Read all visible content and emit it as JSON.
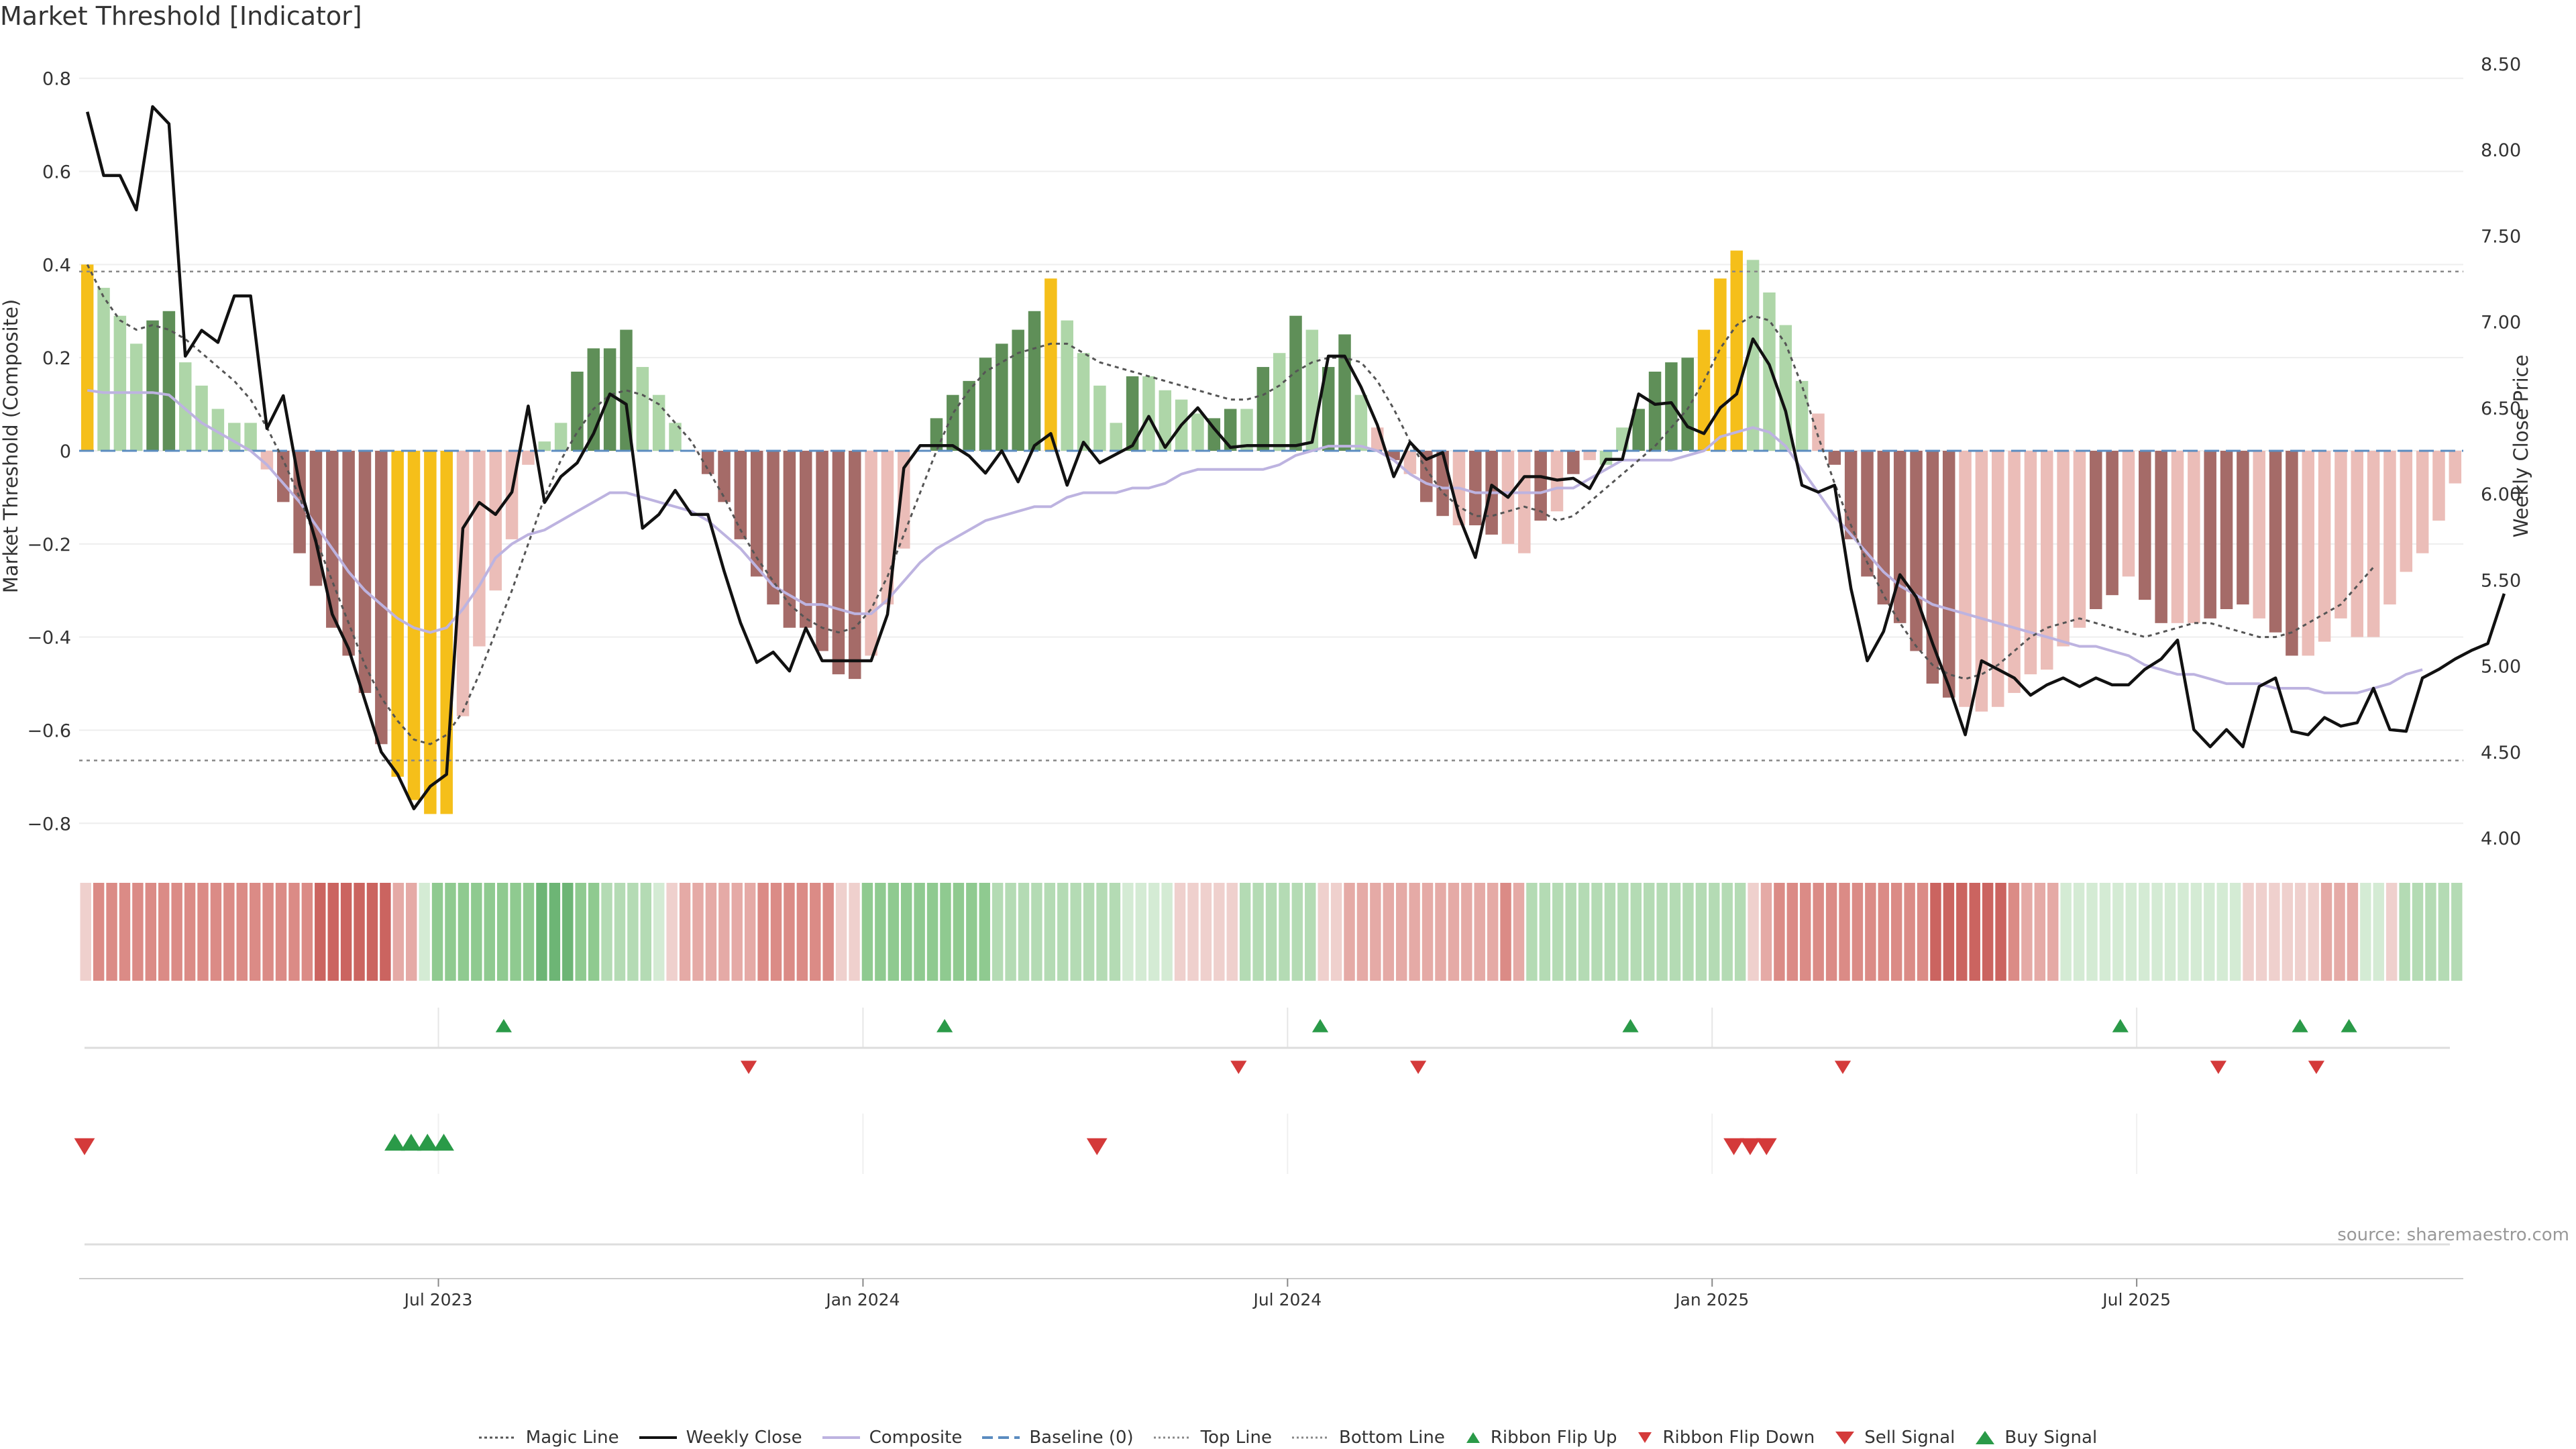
{
  "chart_data": {
    "type": "bar",
    "title": "Market Threshold [Indicator]",
    "left_axis_label": "Market Threshold (Composite)",
    "right_axis_label": "Weekly Close Price",
    "left_ylim": [
      -0.85,
      0.85
    ],
    "right_ylim": [
      3.95,
      8.55
    ],
    "left_ticks": [
      -0.8,
      -0.6,
      -0.4,
      -0.2,
      0,
      0.2,
      0.4,
      0.6,
      0.8
    ],
    "left_tick_labels": [
      "−0.8",
      "−0.6",
      "−0.4",
      "−0.2",
      "0",
      "0.2",
      "0.4",
      "0.6",
      "0.8"
    ],
    "right_ticks": [
      4.0,
      4.5,
      5.0,
      5.5,
      6.0,
      6.5,
      7.0,
      7.5,
      8.0,
      8.5
    ],
    "right_tick_labels": [
      "4.00",
      "4.50",
      "5.00",
      "5.50",
      "6.00",
      "6.50",
      "7.00",
      "7.50",
      "8.00",
      "8.50"
    ],
    "x_ticks": [
      {
        "label": "Jul 2023",
        "week": 22
      },
      {
        "label": "Jan 2024",
        "week": 48
      },
      {
        "label": "Jul 2024",
        "week": 74
      },
      {
        "label": "Jan 2025",
        "week": 100
      },
      {
        "label": "Jul 2025",
        "week": 126
      }
    ],
    "top_line": 0.385,
    "bottom_line": -0.665,
    "baseline": 0,
    "composite": [
      0.4,
      0.35,
      0.29,
      0.23,
      0.28,
      0.3,
      0.19,
      0.14,
      0.09,
      0.06,
      0.06,
      -0.04,
      -0.11,
      -0.22,
      -0.29,
      -0.38,
      -0.44,
      -0.52,
      -0.63,
      -0.7,
      -0.75,
      -0.78,
      -0.78,
      -0.57,
      -0.42,
      -0.3,
      -0.19,
      -0.03,
      0.02,
      0.06,
      0.17,
      0.22,
      0.22,
      0.26,
      0.18,
      0.12,
      0.06,
      0.0,
      -0.05,
      -0.11,
      -0.19,
      -0.27,
      -0.33,
      -0.38,
      -0.38,
      -0.43,
      -0.48,
      -0.49,
      -0.44,
      -0.33,
      -0.21,
      0.0,
      0.07,
      0.12,
      0.15,
      0.2,
      0.23,
      0.26,
      0.3,
      0.37,
      0.28,
      0.21,
      0.14,
      0.06,
      0.16,
      0.16,
      0.13,
      0.11,
      0.08,
      0.07,
      0.09,
      0.09,
      0.18,
      0.21,
      0.29,
      0.26,
      0.18,
      0.25,
      0.12,
      0.05,
      -0.02,
      -0.05,
      -0.11,
      -0.14,
      -0.16,
      -0.16,
      -0.18,
      -0.2,
      -0.22,
      -0.15,
      -0.13,
      -0.05,
      -0.02,
      -0.03,
      0.05,
      0.09,
      0.17,
      0.19,
      0.2,
      0.26,
      0.37,
      0.43,
      0.41,
      0.34,
      0.27,
      0.15,
      0.08,
      -0.03,
      -0.19,
      -0.27,
      -0.33,
      -0.37,
      -0.43,
      -0.5,
      -0.53,
      -0.55,
      -0.56,
      -0.55,
      -0.52,
      -0.48,
      -0.47,
      -0.42,
      -0.38,
      -0.34,
      -0.31,
      -0.27,
      -0.32,
      -0.37,
      -0.37,
      -0.37,
      -0.36,
      -0.34,
      -0.33,
      -0.36,
      -0.39,
      -0.44,
      -0.44,
      -0.41,
      -0.36,
      -0.4,
      -0.4,
      -0.33,
      -0.26,
      -0.22,
      -0.15,
      -0.07
    ],
    "bar_colors": [
      "Y",
      "L",
      "L",
      "L",
      "D",
      "D",
      "L",
      "L",
      "L",
      "L",
      "L",
      "P",
      "R",
      "R",
      "R",
      "R",
      "R",
      "R",
      "R",
      "Y",
      "Y",
      "Y",
      "Y",
      "P",
      "P",
      "P",
      "P",
      "P",
      "L",
      "L",
      "D",
      "D",
      "D",
      "D",
      "L",
      "L",
      "L",
      "P",
      "R",
      "R",
      "R",
      "R",
      "R",
      "R",
      "R",
      "R",
      "R",
      "R",
      "P",
      "P",
      "P",
      "L",
      "D",
      "D",
      "D",
      "D",
      "D",
      "D",
      "D",
      "Y",
      "L",
      "L",
      "L",
      "L",
      "D",
      "L",
      "L",
      "L",
      "L",
      "D",
      "D",
      "L",
      "D",
      "L",
      "D",
      "L",
      "D",
      "D",
      "L",
      "P",
      "R",
      "P",
      "R",
      "R",
      "P",
      "R",
      "R",
      "P",
      "P",
      "R",
      "P",
      "R",
      "P",
      "L",
      "L",
      "D",
      "D",
      "D",
      "D",
      "Y",
      "Y",
      "Y",
      "L",
      "L",
      "L",
      "L",
      "P",
      "R",
      "R",
      "R",
      "R",
      "R",
      "R",
      "R",
      "R",
      "P",
      "P",
      "P",
      "P",
      "P",
      "P",
      "P",
      "P",
      "R",
      "R",
      "P",
      "R",
      "R",
      "P",
      "P",
      "R",
      "R",
      "R",
      "P",
      "R",
      "R",
      "P",
      "P",
      "P",
      "P"
    ],
    "magic_line": [
      0.4,
      0.33,
      0.28,
      0.26,
      0.27,
      0.26,
      0.24,
      0.21,
      0.18,
      0.15,
      0.11,
      0.05,
      -0.02,
      -0.1,
      -0.19,
      -0.28,
      -0.37,
      -0.46,
      -0.53,
      -0.58,
      -0.62,
      -0.63,
      -0.61,
      -0.56,
      -0.48,
      -0.39,
      -0.3,
      -0.2,
      -0.1,
      -0.02,
      0.04,
      0.09,
      0.12,
      0.13,
      0.12,
      0.1,
      0.06,
      0.02,
      -0.04,
      -0.1,
      -0.17,
      -0.23,
      -0.28,
      -0.33,
      -0.36,
      -0.38,
      -0.39,
      -0.38,
      -0.34,
      -0.27,
      -0.18,
      -0.09,
      0.0,
      0.08,
      0.13,
      0.17,
      0.19,
      0.21,
      0.22,
      0.23,
      0.23,
      0.21,
      0.19,
      0.18,
      0.17,
      0.16,
      0.15,
      0.14,
      0.13,
      0.12,
      0.11,
      0.11,
      0.12,
      0.14,
      0.17,
      0.19,
      0.2,
      0.2,
      0.19,
      0.15,
      0.09,
      0.02,
      -0.04,
      -0.09,
      -0.12,
      -0.14,
      -0.14,
      -0.13,
      -0.12,
      -0.13,
      -0.15,
      -0.14,
      -0.11,
      -0.08,
      -0.05,
      -0.02,
      0.01,
      0.05,
      0.09,
      0.15,
      0.22,
      0.27,
      0.29,
      0.28,
      0.23,
      0.14,
      0.03,
      -0.07,
      -0.16,
      -0.24,
      -0.31,
      -0.37,
      -0.42,
      -0.46,
      -0.48,
      -0.49,
      -0.48,
      -0.46,
      -0.43,
      -0.4,
      -0.38,
      -0.37,
      -0.36,
      -0.37,
      -0.38,
      -0.39,
      -0.4,
      -0.39,
      -0.38,
      -0.37,
      -0.37,
      -0.38,
      -0.39,
      -0.4,
      -0.4,
      -0.39,
      -0.37,
      -0.35,
      -0.33,
      -0.29,
      -0.25
    ],
    "composite_line": [
      0.13,
      0.125,
      0.125,
      0.125,
      0.125,
      0.12,
      0.09,
      0.06,
      0.04,
      0.02,
      0.0,
      -0.03,
      -0.07,
      -0.11,
      -0.16,
      -0.21,
      -0.26,
      -0.3,
      -0.33,
      -0.36,
      -0.38,
      -0.39,
      -0.38,
      -0.34,
      -0.29,
      -0.23,
      -0.2,
      -0.18,
      -0.17,
      -0.15,
      -0.13,
      -0.11,
      -0.09,
      -0.09,
      -0.1,
      -0.11,
      -0.12,
      -0.13,
      -0.15,
      -0.18,
      -0.21,
      -0.25,
      -0.29,
      -0.31,
      -0.33,
      -0.33,
      -0.34,
      -0.35,
      -0.35,
      -0.32,
      -0.28,
      -0.24,
      -0.21,
      -0.19,
      -0.17,
      -0.15,
      -0.14,
      -0.13,
      -0.12,
      -0.12,
      -0.1,
      -0.09,
      -0.09,
      -0.09,
      -0.08,
      -0.08,
      -0.07,
      -0.05,
      -0.04,
      -0.04,
      -0.04,
      -0.04,
      -0.04,
      -0.03,
      -0.01,
      0.0,
      0.01,
      0.01,
      0.01,
      0.0,
      -0.02,
      -0.05,
      -0.07,
      -0.08,
      -0.08,
      -0.09,
      -0.09,
      -0.09,
      -0.09,
      -0.09,
      -0.08,
      -0.08,
      -0.06,
      -0.04,
      -0.02,
      -0.02,
      -0.02,
      -0.02,
      -0.01,
      0.0,
      0.03,
      0.04,
      0.05,
      0.04,
      0.01,
      -0.04,
      -0.09,
      -0.14,
      -0.18,
      -0.22,
      -0.26,
      -0.29,
      -0.31,
      -0.33,
      -0.34,
      -0.35,
      -0.36,
      -0.37,
      -0.38,
      -0.39,
      -0.4,
      -0.41,
      -0.42,
      -0.42,
      -0.43,
      -0.44,
      -0.46,
      -0.47,
      -0.48,
      -0.48,
      -0.49,
      -0.5,
      -0.5,
      -0.5,
      -0.51,
      -0.51,
      -0.51,
      -0.52,
      -0.52,
      -0.52,
      -0.51,
      -0.5,
      -0.48,
      -0.47
    ],
    "weekly_close": [
      8.22,
      7.85,
      7.85,
      7.65,
      8.25,
      8.15,
      6.8,
      6.95,
      6.88,
      7.15,
      7.15,
      6.38,
      6.57,
      6.05,
      5.72,
      5.3,
      5.1,
      4.8,
      4.5,
      4.37,
      4.17,
      4.3,
      4.37,
      5.8,
      5.95,
      5.88,
      6.01,
      6.51,
      5.95,
      6.1,
      6.18,
      6.35,
      6.58,
      6.52,
      5.8,
      5.88,
      6.02,
      5.88,
      5.88,
      5.55,
      5.25,
      5.02,
      5.08,
      4.97,
      5.22,
      5.03,
      5.03,
      5.03,
      5.03,
      5.3,
      6.15,
      6.28,
      6.28,
      6.28,
      6.22,
      6.12,
      6.25,
      6.07,
      6.28,
      6.35,
      6.05,
      6.3,
      6.18,
      6.23,
      6.28,
      6.45,
      6.27,
      6.4,
      6.5,
      6.38,
      6.27,
      6.28,
      6.28,
      6.28,
      6.28,
      6.3,
      6.8,
      6.8,
      6.62,
      6.4,
      6.1,
      6.3,
      6.2,
      6.24,
      5.87,
      5.63,
      6.05,
      5.98,
      6.1,
      6.1,
      6.08,
      6.09,
      6.03,
      6.2,
      6.2,
      6.58,
      6.52,
      6.53,
      6.39,
      6.35,
      6.5,
      6.58,
      6.9,
      6.75,
      6.48,
      6.05,
      6.01,
      6.05,
      5.45,
      5.03,
      5.2,
      5.53,
      5.4,
      5.13,
      4.88,
      4.6,
      5.03,
      4.98,
      4.93,
      4.83,
      4.89,
      4.93,
      4.88,
      4.93,
      4.89,
      4.89,
      4.98,
      5.04,
      5.15,
      4.63,
      4.53,
      4.63,
      4.53,
      4.88,
      4.93,
      4.62,
      4.6,
      4.7,
      4.65,
      4.67,
      4.87,
      4.63,
      4.62,
      4.93,
      4.98,
      5.04,
      5.09,
      5.13,
      5.42
    ],
    "ribbon_levels": [
      -1,
      -3,
      -3,
      -3,
      -3,
      -3,
      -3,
      -3,
      -3,
      -3,
      -3,
      -3,
      -3,
      -3,
      -3,
      -3,
      -3,
      -3,
      -4,
      -4,
      -4,
      -4,
      -4,
      -4,
      -2,
      -2,
      1,
      3,
      3,
      3,
      3,
      3,
      3,
      3,
      3,
      4,
      4,
      4,
      3,
      3,
      2,
      2,
      2,
      2,
      1,
      -1,
      -2,
      -2,
      -2,
      -2,
      -2,
      -2,
      -3,
      -3,
      -3,
      -3,
      -3,
      -3,
      -1,
      -1,
      3,
      3,
      3,
      3,
      3,
      3,
      3,
      3,
      3,
      3,
      2,
      2,
      2,
      2,
      2,
      2,
      2,
      2,
      2,
      2,
      1,
      1,
      1,
      1,
      -1,
      -1,
      -1,
      -1,
      -1,
      2,
      2,
      2,
      2,
      2,
      2,
      -1,
      -1,
      -2,
      -2,
      -2,
      -2,
      -2,
      -2,
      -2,
      -2,
      -2,
      -2,
      -2,
      -2,
      -3,
      -2,
      2,
      2,
      2,
      2,
      2,
      2,
      2,
      2,
      2,
      2,
      2,
      2,
      2,
      2,
      2,
      2,
      2,
      -1,
      -2,
      -3,
      -3,
      -3,
      -3,
      -3,
      -3,
      -3,
      -3,
      -3,
      -3,
      -3,
      -3,
      -4,
      -4,
      -4,
      -4,
      -4,
      -4,
      -3,
      -2,
      -2,
      -2,
      1,
      1,
      1,
      1,
      1,
      1,
      1,
      1,
      1,
      1,
      1,
      1,
      1,
      1,
      -1,
      -1,
      -1,
      -1,
      -1,
      -1,
      -2,
      -2,
      -2,
      1,
      1,
      -1,
      2,
      2,
      2,
      2,
      2
    ],
    "ribbon_flip_up": [
      26,
      53,
      76,
      95,
      125,
      136,
      139
    ],
    "ribbon_flip_down": [
      41,
      71,
      82,
      108,
      131,
      137
    ],
    "sell_signal": [
      0,
      62,
      101,
      102,
      103
    ],
    "buy_signal": [
      19,
      20,
      21,
      22
    ]
  },
  "legend": {
    "magic_line": "Magic Line",
    "weekly_close": "Weekly Close",
    "composite": "Composite",
    "baseline": "Baseline (0)",
    "top_line": "Top Line",
    "bottom_line": "Bottom Line",
    "ribbon_flip_up": "Ribbon Flip Up",
    "ribbon_flip_down": "Ribbon Flip Down",
    "sell_signal": "Sell Signal",
    "buy_signal": "Buy Signal"
  },
  "source": "source: sharemaestro.com",
  "colors": {
    "yellow": "#f5bf1a",
    "light_green": "#aed6a8",
    "dark_green": "#5f8f58",
    "pink": "#ebbdb8",
    "dark_red": "#a56b68",
    "close_line": "#111111",
    "composite_line": "#bdb3e0",
    "magic_line": "#555555",
    "baseline": "#5b8cc0",
    "signal_up": "#2a9a48",
    "signal_down": "#d43a3a"
  }
}
